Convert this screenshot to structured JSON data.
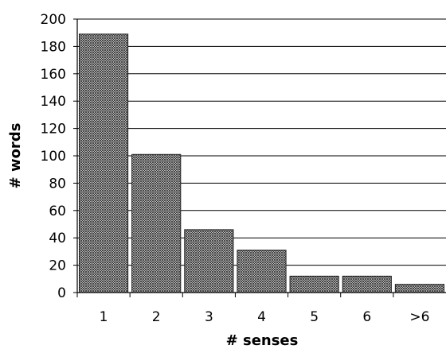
{
  "chart_data": {
    "type": "bar",
    "categories": [
      "1",
      "2",
      "3",
      "4",
      "5",
      "6",
      ">6"
    ],
    "values": [
      189,
      101,
      46,
      31,
      12,
      12,
      6
    ],
    "xlabel": "# senses",
    "ylabel": "# words",
    "ylim": [
      0,
      200
    ],
    "yticks": [
      0,
      20,
      40,
      60,
      80,
      100,
      120,
      140,
      160,
      180,
      200
    ],
    "grid": "horizontal",
    "bar_fill": "crosshatch",
    "colors": {
      "bar": "#3a3a3a",
      "grid": "#000000",
      "background": "#ffffff"
    }
  }
}
